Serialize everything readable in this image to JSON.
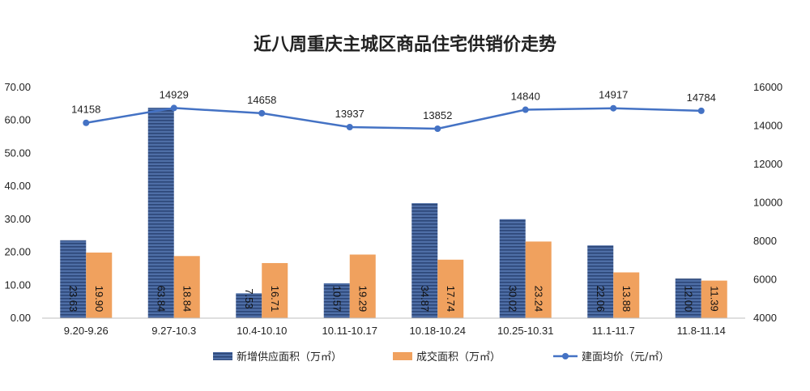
{
  "chart_data": {
    "type": "bar",
    "title": "近八周重庆主城区商品住宅供销价走势",
    "categories": [
      "9.20-9.26",
      "9.27-10.3",
      "10.4-10.10",
      "10.11-10.17",
      "10.18-10.24",
      "10.25-10.31",
      "11.1-11.7",
      "11.8-11.14"
    ],
    "series": [
      {
        "name": "新增供应面积（万㎡）",
        "type": "bar",
        "axis": "left",
        "color": "#3d5a8c",
        "values": [
          23.63,
          63.84,
          7.53,
          10.57,
          34.87,
          30.02,
          22.06,
          12.0
        ],
        "labels": [
          "23.63",
          "63.84",
          "7.53",
          "10.57",
          "34.87",
          "30.02",
          "22.06",
          "12.00"
        ]
      },
      {
        "name": "成交面积（万㎡）",
        "type": "bar",
        "axis": "left",
        "color": "#f0a15e",
        "values": [
          19.9,
          18.84,
          16.71,
          19.29,
          17.74,
          23.24,
          13.88,
          11.39
        ],
        "labels": [
          "19.90",
          "18.84",
          "16.71",
          "19.29",
          "17.74",
          "23.24",
          "13.88",
          "11.39"
        ]
      },
      {
        "name": "建面均价（元/㎡）",
        "type": "line",
        "axis": "right",
        "color": "#4472c4",
        "values": [
          14158,
          14929,
          14658,
          13937,
          13852,
          14840,
          14917,
          14784
        ],
        "labels": [
          "14158",
          "14929",
          "14658",
          "13937",
          "13852",
          "14840",
          "14917",
          "14784"
        ]
      }
    ],
    "y_left": {
      "min": 0,
      "max": 70,
      "step": 10,
      "tick_labels": [
        "0.00",
        "10.00",
        "20.00",
        "30.00",
        "40.00",
        "50.00",
        "60.00",
        "70.00"
      ]
    },
    "y_right": {
      "min": 4000,
      "max": 16000,
      "step": 2000,
      "tick_labels": [
        "4000",
        "6000",
        "8000",
        "10000",
        "12000",
        "14000",
        "16000"
      ]
    },
    "grid": false,
    "legend": "bottom"
  }
}
